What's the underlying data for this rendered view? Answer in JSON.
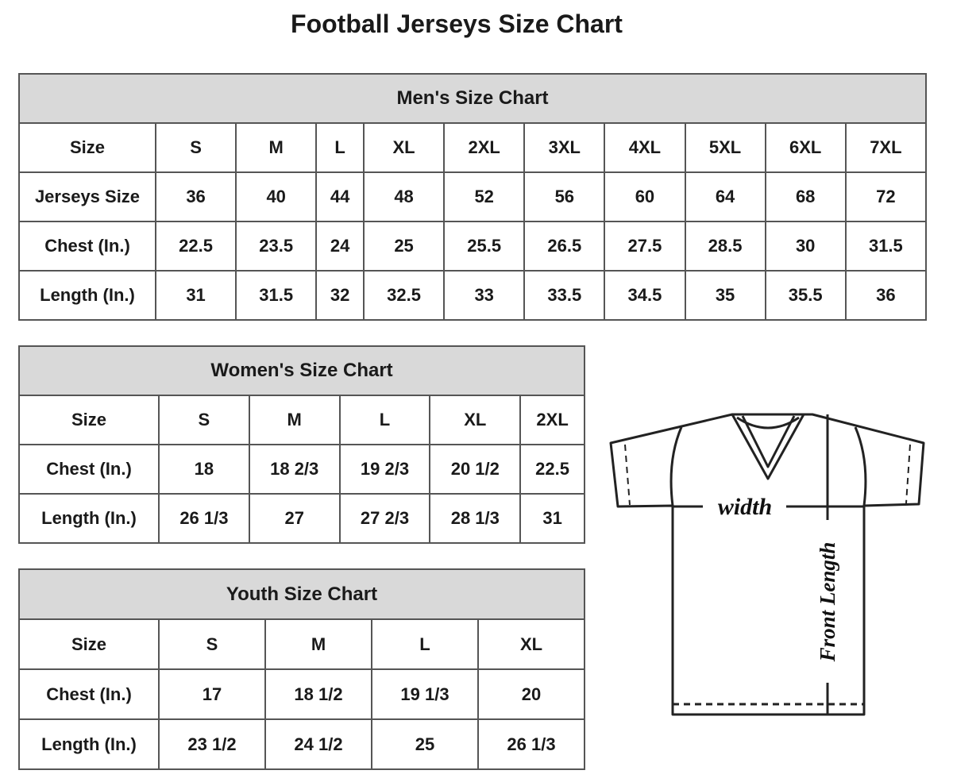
{
  "title": "Football Jerseys Size Chart",
  "men": {
    "heading": "Men's Size Chart",
    "rows": [
      [
        "Size",
        "S",
        "M",
        "L",
        "XL",
        "2XL",
        "3XL",
        "4XL",
        "5XL",
        "6XL",
        "7XL"
      ],
      [
        "Jerseys Size",
        "36",
        "40",
        "44",
        "48",
        "52",
        "56",
        "60",
        "64",
        "68",
        "72"
      ],
      [
        "Chest (In.)",
        "22.5",
        "23.5",
        "24",
        "25",
        "25.5",
        "26.5",
        "27.5",
        "28.5",
        "30",
        "31.5"
      ],
      [
        "Length (In.)",
        "31",
        "31.5",
        "32",
        "32.5",
        "33",
        "33.5",
        "34.5",
        "35",
        "35.5",
        "36"
      ]
    ]
  },
  "women": {
    "heading": "Women's Size Chart",
    "rows": [
      [
        "Size",
        "S",
        "M",
        "L",
        "XL",
        "2XL"
      ],
      [
        "Chest (In.)",
        "18",
        "18 2/3",
        "19 2/3",
        "20 1/2",
        "22.5"
      ],
      [
        "Length (In.)",
        "26 1/3",
        "27",
        "27 2/3",
        "28 1/3",
        "31"
      ]
    ]
  },
  "youth": {
    "heading": "Youth Size Chart",
    "rows": [
      [
        "Size",
        "S",
        "M",
        "L",
        "XL"
      ],
      [
        "Chest (In.)",
        "17",
        "18 1/2",
        "19 1/3",
        "20"
      ],
      [
        "Length (In.)",
        "23 1/2",
        "24 1/2",
        "25",
        "26 1/3"
      ]
    ]
  },
  "diagram": {
    "width_label": "width",
    "length_label": "Front Length"
  }
}
